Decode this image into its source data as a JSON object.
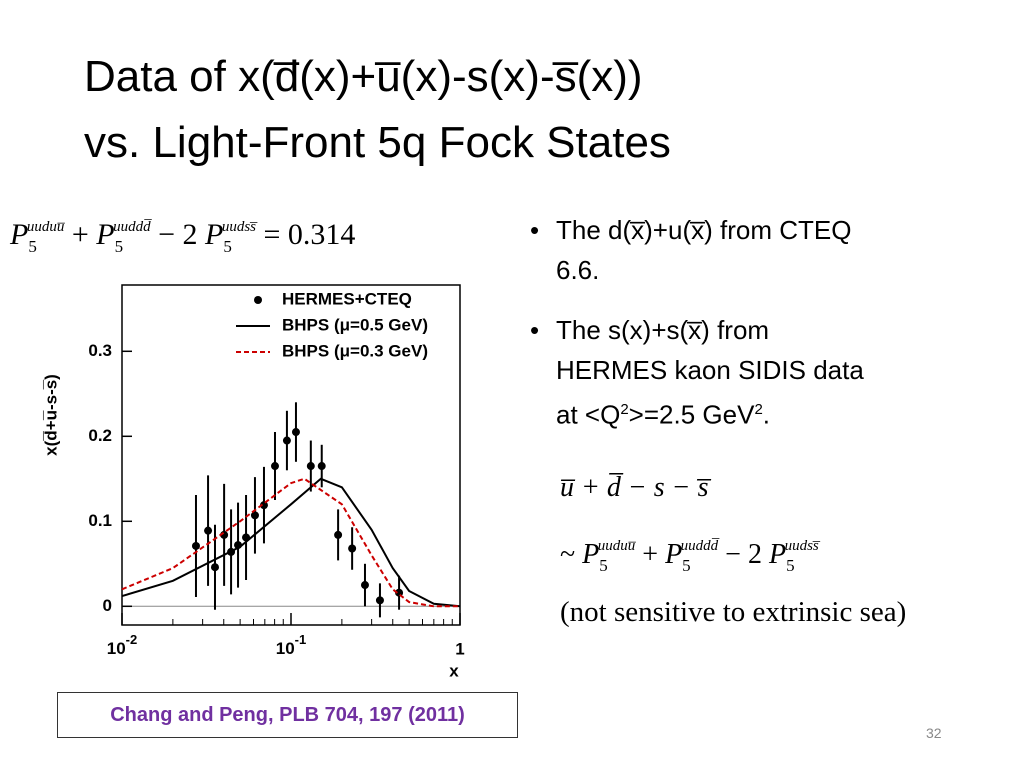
{
  "slide": {
    "title": [
      "Data of x(d̅(x)+u̅(x)-s(x)-s̅(x))",
      "vs. Light-Front 5q Fock States"
    ],
    "formula_top": {
      "terms": [
        {
          "op": "",
          "sym": "P",
          "sub": "5",
          "sup": "uuduu̅"
        },
        {
          "op": "+",
          "sym": "P",
          "sub": "5",
          "sup": "uuddd̅"
        },
        {
          "op": "− 2",
          "sym": "P",
          "sub": "5",
          "sup": "uudss̅"
        }
      ],
      "rhs": "= 0.314"
    },
    "bullets": [
      [
        "The d(x̅)+u(x̅) from CTEQ 6.6."
      ],
      [
        "The s(x)+s(x̅) from HERMES kaon SIDIS data at <Q",
        "2",
        ">=2.5 GeV",
        "2",
        "."
      ]
    ],
    "equation": "u̅ + d̅ − s − s̅",
    "formula_approx": {
      "lead": "~",
      "terms": [
        {
          "op": "",
          "sym": "P",
          "sub": "5",
          "sup": "uuduu̅"
        },
        {
          "op": "+",
          "sym": "P",
          "sub": "5",
          "sup": "uuddd̅"
        },
        {
          "op": "− 2",
          "sym": "P",
          "sub": "5",
          "sup": "uudss̅"
        }
      ]
    },
    "note": "(not sensitive to extrinsic sea)",
    "citation": "Chang and Peng, PLB 704, 197 (2011)",
    "page_number": "32"
  },
  "chart_data": {
    "type": "scatter",
    "x_label": "x",
    "y_label": "x(d̅+u̅-s-s̅)",
    "x_log": true,
    "xlim": [
      0.01,
      1
    ],
    "ylim": [
      -0.022,
      0.378
    ],
    "xticks": [
      {
        "value": 0.01,
        "label": "10",
        "exponent": "-2"
      },
      {
        "value": 0.1,
        "label": "10",
        "exponent": "-1"
      },
      1
    ],
    "yticks": [
      0,
      0.1,
      0.2,
      0.3
    ],
    "zero_line": true,
    "series": [
      {
        "name": "HERMES+CTEQ",
        "type": "scatter",
        "color": "#000000",
        "x": [
          0.0274,
          0.0323,
          0.0355,
          0.0402,
          0.0442,
          0.0486,
          0.0542,
          0.0612,
          0.0692,
          0.0804,
          0.0946,
          0.107,
          0.131,
          0.152,
          0.19,
          0.23,
          0.274,
          0.336,
          0.436
        ],
        "values": [
          0.071,
          0.089,
          0.046,
          0.084,
          0.064,
          0.072,
          0.081,
          0.107,
          0.119,
          0.165,
          0.195,
          0.205,
          0.165,
          0.165,
          0.084,
          0.068,
          0.025,
          0.007,
          0.016
        ],
        "errors": [
          0.06,
          0.065,
          0.05,
          0.06,
          0.05,
          0.05,
          0.05,
          0.045,
          0.045,
          0.04,
          0.035,
          0.035,
          0.03,
          0.025,
          0.03,
          0.025,
          0.025,
          0.02,
          0.02
        ]
      },
      {
        "name": "BHPS (μ=0.5 GeV)",
        "type": "line",
        "color": "#000000",
        "dash": false,
        "x": [
          0.01,
          0.02,
          0.05,
          0.1,
          0.15,
          0.2,
          0.3,
          0.4,
          0.5,
          0.7,
          1
        ],
        "values": [
          0.012,
          0.03,
          0.07,
          0.12,
          0.15,
          0.14,
          0.09,
          0.045,
          0.018,
          0.003,
          0
        ]
      },
      {
        "name": "BHPS (μ=0.3 GeV)",
        "type": "line",
        "color": "#cc0000",
        "dash": true,
        "x": [
          0.01,
          0.02,
          0.05,
          0.1,
          0.12,
          0.2,
          0.3,
          0.4,
          0.5,
          0.7,
          1
        ],
        "values": [
          0.02,
          0.045,
          0.1,
          0.145,
          0.15,
          0.12,
          0.06,
          0.02,
          0.005,
          0,
          0
        ]
      }
    ]
  }
}
